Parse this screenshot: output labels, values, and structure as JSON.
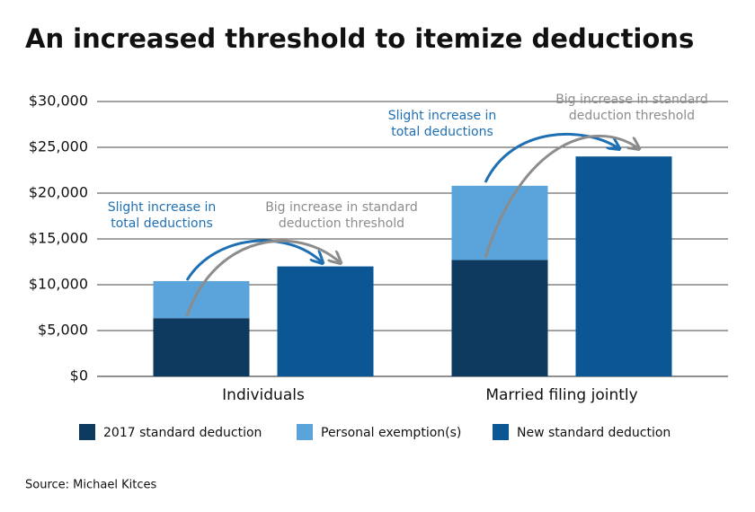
{
  "chart_data": {
    "type": "bar",
    "title": "An increased threshold to itemize deductions",
    "categories": [
      "Individuals",
      "Married filing jointly"
    ],
    "series": [
      {
        "name": "2017 standard deduction",
        "color": "#0f3a5f",
        "values": [
          6350,
          12700
        ]
      },
      {
        "name": "Personal exemption(s)",
        "color": "#5aa4db",
        "values": [
          4050,
          8100
        ]
      },
      {
        "name": "New standard deduction",
        "color": "#0b5796",
        "values": [
          12000,
          24000
        ]
      }
    ],
    "ylim": [
      0,
      30000
    ],
    "yticks": [
      {
        "value": 0,
        "label": "$0"
      },
      {
        "value": 5000,
        "label": "$5,000"
      },
      {
        "value": 10000,
        "label": "$10,000"
      },
      {
        "value": 15000,
        "label": "$15,000"
      },
      {
        "value": 20000,
        "label": "$20,000"
      },
      {
        "value": 25000,
        "label": "$25,000"
      },
      {
        "value": 30000,
        "label": "$30,000"
      }
    ],
    "grid": true,
    "annotations": [
      {
        "lines": [
          "Slight increase in",
          "total deductions"
        ],
        "color": "#1f6fb3"
      },
      {
        "lines": [
          "Big increase in standard",
          "deduction threshold"
        ],
        "color": "#8c8c8c"
      },
      {
        "lines": [
          "Slight increase in",
          "total deductions"
        ],
        "color": "#1f6fb3"
      },
      {
        "lines": [
          "Big increase in standard",
          "deduction threshold"
        ],
        "color": "#8c8c8c"
      }
    ],
    "source": "Source: Michael Kitces"
  }
}
